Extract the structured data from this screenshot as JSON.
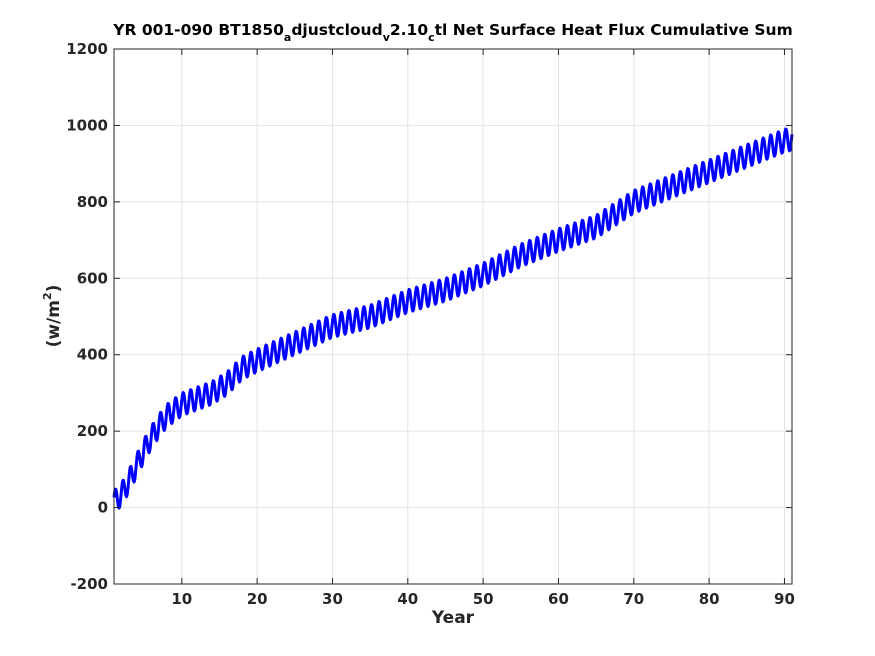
{
  "chart_data": {
    "type": "line",
    "title": {
      "prefix": "YR 001-090 BT1850",
      "sub1": "a",
      "part2": "djustcloud",
      "sub2": "v",
      "part3": "2.10",
      "sub3": "c",
      "suffix": "tl Net Surface Heat Flux  Cumulative Sum"
    },
    "xlabel": "Year",
    "ylabel": {
      "base": "(w/m",
      "sup": "2",
      "close": ")"
    },
    "xlim": [
      1,
      91
    ],
    "ylim": [
      -200,
      1200
    ],
    "xticks": [
      10,
      20,
      30,
      40,
      50,
      60,
      70,
      80,
      90
    ],
    "yticks": [
      -200,
      0,
      200,
      400,
      600,
      800,
      1000,
      1200
    ],
    "grid": true,
    "series": [
      {
        "color": "#0000ff",
        "seasonal_amplitude": 30,
        "x": [
          1,
          2,
          3,
          4,
          5,
          6,
          7,
          8,
          9,
          10,
          12,
          14,
          16,
          18,
          20,
          25,
          30,
          35,
          40,
          45,
          50,
          55,
          60,
          65,
          70,
          75,
          80,
          85,
          90,
          91
        ],
        "y": [
          15,
          35,
          70,
          110,
          150,
          185,
          215,
          240,
          255,
          270,
          285,
          300,
          325,
          365,
          385,
          430,
          475,
          500,
          540,
          570,
          610,
          660,
          700,
          735,
          800,
          840,
          880,
          920,
          960,
          965
        ]
      }
    ]
  }
}
